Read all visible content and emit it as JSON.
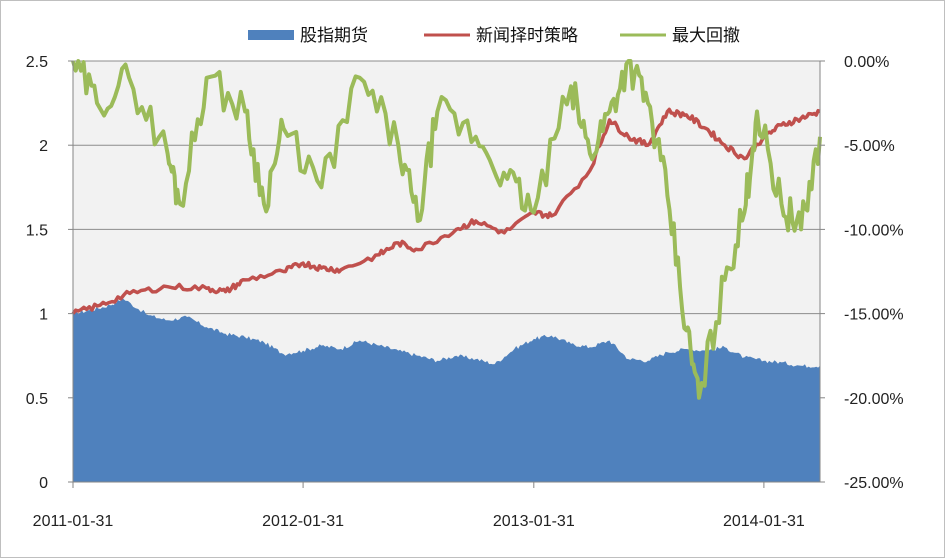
{
  "chart_data": {
    "type": "area",
    "x_labels": [
      "2011-01-31",
      "2012-01-31",
      "2013-01-31",
      "2014-01-31"
    ],
    "x_range": [
      "2011-01-31",
      "2014-04-30"
    ],
    "y_left": {
      "range": [
        0,
        2.5
      ],
      "ticks": [
        "0",
        "0.5",
        "1",
        "1.5",
        "2",
        "2.5"
      ]
    },
    "y_right": {
      "range": [
        -25,
        0
      ],
      "ticks": [
        "-25.00%",
        "-20.00%",
        "-15.00%",
        "-10.00%",
        "-5.00%",
        "0.00%"
      ]
    },
    "legend_position": "top",
    "grid": true,
    "series": [
      {
        "name": "股指期货",
        "type": "area",
        "axis": "left",
        "color": "#4f81bd",
        "points": [
          [
            "2011-01-31",
            1.0
          ],
          [
            "2011-02-28",
            1.02
          ],
          [
            "2011-03-31",
            1.05
          ],
          [
            "2011-04-20",
            1.09
          ],
          [
            "2011-05-31",
            0.99
          ],
          [
            "2011-06-30",
            0.96
          ],
          [
            "2011-07-31",
            0.98
          ],
          [
            "2011-08-31",
            0.92
          ],
          [
            "2011-09-30",
            0.88
          ],
          [
            "2011-10-31",
            0.86
          ],
          [
            "2011-11-30",
            0.83
          ],
          [
            "2011-12-31",
            0.76
          ],
          [
            "2012-01-31",
            0.78
          ],
          [
            "2012-02-29",
            0.81
          ],
          [
            "2012-03-31",
            0.79
          ],
          [
            "2012-04-30",
            0.84
          ],
          [
            "2012-05-31",
            0.81
          ],
          [
            "2012-06-30",
            0.78
          ],
          [
            "2012-07-31",
            0.75
          ],
          [
            "2012-08-31",
            0.72
          ],
          [
            "2012-09-30",
            0.75
          ],
          [
            "2012-10-31",
            0.73
          ],
          [
            "2012-11-30",
            0.7
          ],
          [
            "2012-12-31",
            0.79
          ],
          [
            "2013-01-31",
            0.85
          ],
          [
            "2013-02-28",
            0.87
          ],
          [
            "2013-03-31",
            0.82
          ],
          [
            "2013-04-30",
            0.8
          ],
          [
            "2013-05-31",
            0.84
          ],
          [
            "2013-06-30",
            0.73
          ],
          [
            "2013-07-31",
            0.72
          ],
          [
            "2013-08-31",
            0.77
          ],
          [
            "2013-09-30",
            0.79
          ],
          [
            "2013-10-31",
            0.78
          ],
          [
            "2013-11-30",
            0.8
          ],
          [
            "2013-12-31",
            0.74
          ],
          [
            "2014-01-31",
            0.72
          ],
          [
            "2014-02-28",
            0.71
          ],
          [
            "2014-03-31",
            0.69
          ],
          [
            "2014-04-30",
            0.69
          ]
        ]
      },
      {
        "name": "新闻择时策略",
        "type": "line",
        "axis": "left",
        "color": "#c0504d",
        "points": [
          [
            "2011-01-31",
            1.0
          ],
          [
            "2011-03-15",
            1.05
          ],
          [
            "2011-05-01",
            1.12
          ],
          [
            "2011-06-30",
            1.16
          ],
          [
            "2011-08-31",
            1.15
          ],
          [
            "2011-09-30",
            1.13
          ],
          [
            "2011-10-31",
            1.2
          ],
          [
            "2011-12-31",
            1.25
          ],
          [
            "2012-01-31",
            1.3
          ],
          [
            "2012-02-29",
            1.27
          ],
          [
            "2012-03-31",
            1.26
          ],
          [
            "2012-05-31",
            1.35
          ],
          [
            "2012-06-30",
            1.42
          ],
          [
            "2012-07-31",
            1.38
          ],
          [
            "2012-09-30",
            1.5
          ],
          [
            "2012-10-31",
            1.55
          ],
          [
            "2012-12-15",
            1.48
          ],
          [
            "2013-01-31",
            1.6
          ],
          [
            "2013-02-28",
            1.58
          ],
          [
            "2013-04-30",
            1.85
          ],
          [
            "2013-05-31",
            2.15
          ],
          [
            "2013-06-30",
            2.05
          ],
          [
            "2013-07-31",
            2.0
          ],
          [
            "2013-08-31",
            2.2
          ],
          [
            "2013-09-30",
            2.18
          ],
          [
            "2013-10-31",
            2.1
          ],
          [
            "2013-11-30",
            2.0
          ],
          [
            "2013-12-31",
            1.92
          ],
          [
            "2014-01-31",
            2.05
          ],
          [
            "2014-02-28",
            2.12
          ],
          [
            "2014-03-31",
            2.16
          ],
          [
            "2014-04-30",
            2.2
          ]
        ]
      },
      {
        "name": "最大回撤",
        "type": "line",
        "axis": "right",
        "color": "#9bbb59",
        "points": [
          [
            "2011-01-31",
            0.0
          ],
          [
            "2011-03-10",
            -2.5
          ],
          [
            "2011-04-30",
            -1.0
          ],
          [
            "2011-06-30",
            -5.5
          ],
          [
            "2011-07-20",
            -8.5
          ],
          [
            "2011-08-31",
            -1.0
          ],
          [
            "2011-10-31",
            -3.0
          ],
          [
            "2011-11-30",
            -8.5
          ],
          [
            "2011-12-31",
            -4.0
          ],
          [
            "2012-02-29",
            -7.5
          ],
          [
            "2012-04-30",
            -1.0
          ],
          [
            "2012-06-30",
            -5.0
          ],
          [
            "2012-07-31",
            -9.5
          ],
          [
            "2012-08-31",
            -3.0
          ],
          [
            "2012-10-31",
            -4.5
          ],
          [
            "2012-12-20",
            -7.0
          ],
          [
            "2013-01-31",
            -9.0
          ],
          [
            "2013-03-31",
            -1.5
          ],
          [
            "2013-04-30",
            -5.5
          ],
          [
            "2013-05-31",
            -3.0
          ],
          [
            "2013-06-30",
            0.0
          ],
          [
            "2013-07-31",
            -2.5
          ],
          [
            "2013-08-31",
            -8.0
          ],
          [
            "2013-09-30",
            -16.0
          ],
          [
            "2013-10-20",
            -20.0
          ],
          [
            "2013-11-30",
            -13.0
          ],
          [
            "2013-12-31",
            -9.0
          ],
          [
            "2014-01-20",
            -3.0
          ],
          [
            "2014-02-28",
            -8.5
          ],
          [
            "2014-03-31",
            -10.0
          ],
          [
            "2014-04-30",
            -4.5
          ]
        ]
      }
    ]
  }
}
